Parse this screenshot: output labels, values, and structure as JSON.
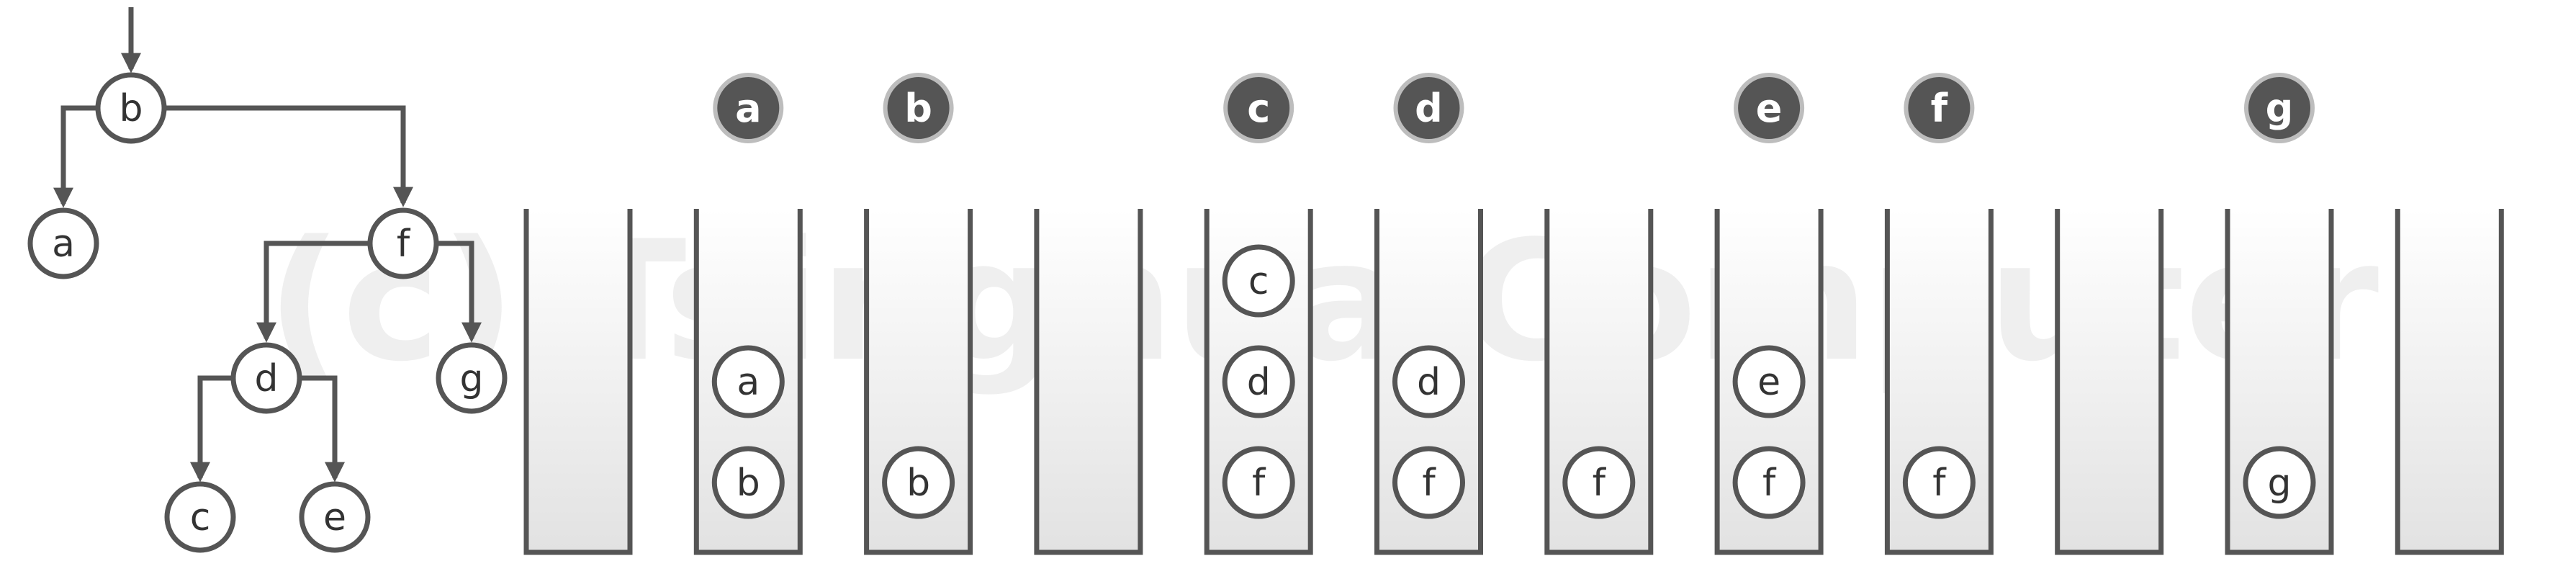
{
  "watermark": "(c) Tsinghua Computer",
  "tree": {
    "nodes": [
      {
        "id": "b",
        "label": "b"
      },
      {
        "id": "a",
        "label": "a"
      },
      {
        "id": "f",
        "label": "f"
      },
      {
        "id": "d",
        "label": "d"
      },
      {
        "id": "g",
        "label": "g"
      },
      {
        "id": "c",
        "label": "c"
      },
      {
        "id": "e",
        "label": "e"
      }
    ]
  },
  "traversal": {
    "visits": [
      "a",
      "b",
      "",
      "c",
      "d",
      "",
      "e",
      "f",
      "",
      "g"
    ],
    "stacks": [
      [],
      [
        "b",
        "a"
      ],
      [
        "b"
      ],
      [],
      [
        "f",
        "d",
        "c"
      ],
      [
        "f",
        "d"
      ],
      [
        "f"
      ],
      [
        "f",
        "e"
      ],
      [
        "f"
      ],
      [],
      [
        "g"
      ],
      []
    ]
  },
  "colors": {
    "stroke": "#555555",
    "visited_fill": "#555555",
    "visited_ring": "#bdbdbd",
    "watermark": "#ededed"
  }
}
